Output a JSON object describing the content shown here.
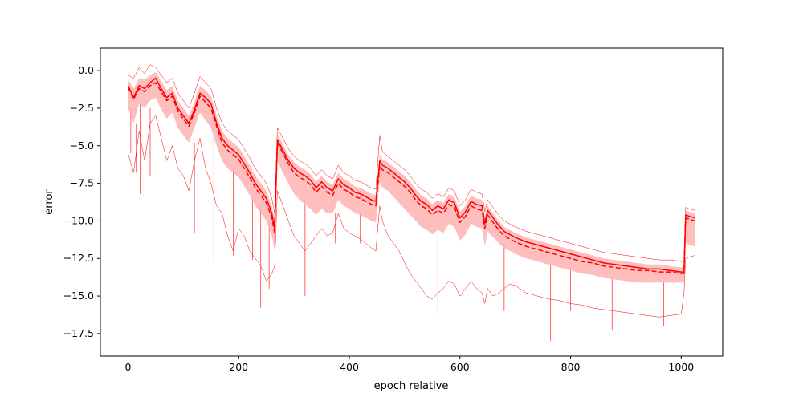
{
  "chart_data": {
    "type": "line",
    "title": "",
    "xlabel": "epoch relative",
    "ylabel": "error",
    "xlim": [
      -50,
      1075
    ],
    "ylim": [
      -19.0,
      1.5
    ],
    "grid": false,
    "legend": "none",
    "xticks": [
      0,
      200,
      400,
      600,
      800,
      1000
    ],
    "yticks": [
      0.0,
      -2.5,
      -5.0,
      -7.5,
      -10.0,
      -12.5,
      -15.0,
      -17.5
    ],
    "xtick_labels": [
      "0",
      "200",
      "400",
      "600",
      "800",
      "1000"
    ],
    "ytick_labels": [
      "0.0",
      "−2.5",
      "−5.0",
      "−7.5",
      "−10.0",
      "−12.5",
      "−15.0",
      "−17.5"
    ],
    "color": "#ff0000",
    "band_color": "#ffb3b3",
    "x": [
      0,
      10,
      20,
      30,
      40,
      50,
      60,
      70,
      80,
      90,
      100,
      110,
      120,
      130,
      140,
      150,
      160,
      170,
      180,
      190,
      200,
      210,
      220,
      230,
      240,
      250,
      260,
      265,
      270,
      280,
      290,
      300,
      310,
      320,
      330,
      340,
      350,
      360,
      370,
      380,
      390,
      400,
      410,
      420,
      430,
      440,
      448,
      455,
      460,
      470,
      480,
      490,
      500,
      510,
      520,
      530,
      540,
      550,
      560,
      570,
      580,
      590,
      600,
      610,
      620,
      630,
      640,
      645,
      650,
      660,
      670,
      680,
      690,
      700,
      720,
      740,
      760,
      780,
      800,
      820,
      840,
      860,
      880,
      900,
      920,
      940,
      960,
      980,
      1000,
      1005,
      1008,
      1015,
      1025
    ],
    "series": [
      {
        "line": "solid",
        "values": [
          -1.0,
          -1.8,
          -1.0,
          -1.2,
          -0.8,
          -0.5,
          -1.2,
          -1.8,
          -1.5,
          -2.5,
          -3.0,
          -3.5,
          -2.6,
          -1.5,
          -1.8,
          -2.2,
          -3.5,
          -4.5,
          -5.0,
          -5.3,
          -5.6,
          -6.2,
          -6.8,
          -7.5,
          -8.0,
          -8.5,
          -9.5,
          -10.5,
          -4.6,
          -5.3,
          -6.0,
          -6.5,
          -6.8,
          -7.0,
          -7.3,
          -7.8,
          -7.4,
          -7.8,
          -8.0,
          -7.2,
          -7.6,
          -7.8,
          -8.1,
          -8.2,
          -8.4,
          -8.6,
          -8.7,
          -6.0,
          -6.3,
          -6.5,
          -6.8,
          -7.1,
          -7.4,
          -7.8,
          -8.3,
          -8.7,
          -8.9,
          -9.3,
          -9.0,
          -9.2,
          -8.6,
          -8.8,
          -9.8,
          -9.4,
          -8.7,
          -8.9,
          -9.0,
          -10.2,
          -9.3,
          -9.8,
          -10.3,
          -10.7,
          -10.9,
          -11.1,
          -11.4,
          -11.6,
          -11.8,
          -12.0,
          -12.2,
          -12.4,
          -12.6,
          -12.8,
          -12.9,
          -13.0,
          -13.1,
          -13.2,
          -13.2,
          -13.3,
          -13.4,
          -13.4,
          -9.6,
          -9.7,
          -9.8
        ]
      },
      {
        "line": "dashed",
        "values": [
          -1.1,
          -1.9,
          -1.2,
          -1.4,
          -1.0,
          -0.8,
          -1.4,
          -2.0,
          -1.7,
          -2.7,
          -3.2,
          -3.7,
          -2.8,
          -1.7,
          -2.1,
          -2.5,
          -3.7,
          -4.8,
          -5.3,
          -5.6,
          -5.9,
          -6.5,
          -7.1,
          -7.8,
          -8.3,
          -8.8,
          -9.8,
          -10.8,
          -4.8,
          -5.5,
          -6.2,
          -6.8,
          -7.1,
          -7.3,
          -7.6,
          -8.1,
          -7.7,
          -8.1,
          -8.3,
          -7.5,
          -7.9,
          -8.1,
          -8.4,
          -8.5,
          -8.7,
          -8.9,
          -9.0,
          -6.3,
          -6.6,
          -6.8,
          -7.1,
          -7.4,
          -7.7,
          -8.1,
          -8.6,
          -9.0,
          -9.2,
          -9.6,
          -9.3,
          -9.5,
          -8.9,
          -9.1,
          -10.1,
          -9.7,
          -9.0,
          -9.2,
          -9.3,
          -10.5,
          -9.6,
          -10.1,
          -10.6,
          -11.0,
          -11.2,
          -11.4,
          -11.7,
          -11.9,
          -12.1,
          -12.3,
          -12.5,
          -12.7,
          -12.8,
          -13.0,
          -13.1,
          -13.2,
          -13.3,
          -13.3,
          -13.4,
          -13.4,
          -13.5,
          -13.5,
          -9.8,
          -9.9,
          -10.0
        ]
      }
    ],
    "band_lower": [
      -2.5,
      -3.5,
      -2.2,
      -2.5,
      -2.0,
      -1.8,
      -2.6,
      -3.2,
      -2.8,
      -3.8,
      -4.3,
      -4.8,
      -3.8,
      -2.8,
      -3.3,
      -3.8,
      -5.0,
      -6.0,
      -6.5,
      -6.8,
      -7.1,
      -7.7,
      -8.3,
      -9.0,
      -9.5,
      -10.0,
      -11.0,
      -12.0,
      -6.0,
      -6.8,
      -7.5,
      -8.2,
      -8.6,
      -8.9,
      -9.2,
      -9.6,
      -9.2,
      -9.5,
      -9.5,
      -8.6,
      -9.0,
      -9.2,
      -9.5,
      -9.6,
      -9.8,
      -10.0,
      -10.1,
      -7.4,
      -7.8,
      -8.0,
      -8.4,
      -8.8,
      -9.2,
      -9.6,
      -10.0,
      -10.4,
      -10.6,
      -10.9,
      -10.6,
      -10.8,
      -10.2,
      -10.4,
      -11.3,
      -10.9,
      -10.2,
      -10.4,
      -10.5,
      -11.7,
      -10.7,
      -11.1,
      -11.5,
      -11.8,
      -12.0,
      -12.2,
      -12.5,
      -12.7,
      -12.9,
      -13.1,
      -13.3,
      -13.5,
      -13.6,
      -13.8,
      -13.9,
      -14.0,
      -14.1,
      -14.1,
      -14.1,
      -14.1,
      -14.1,
      -14.1,
      -11.5,
      -11.6,
      -11.7
    ],
    "band_upper": [
      -0.6,
      -1.2,
      -0.5,
      -0.6,
      -0.3,
      -0.1,
      -0.7,
      -1.3,
      -1.0,
      -2.0,
      -2.5,
      -3.0,
      -2.1,
      -1.0,
      -1.3,
      -1.7,
      -3.0,
      -4.0,
      -4.5,
      -4.8,
      -5.1,
      -5.7,
      -6.3,
      -7.0,
      -7.5,
      -8.0,
      -9.0,
      -10.0,
      -4.2,
      -4.9,
      -5.6,
      -6.1,
      -6.4,
      -6.6,
      -6.9,
      -7.4,
      -7.0,
      -7.4,
      -7.6,
      -6.8,
      -7.2,
      -7.4,
      -7.7,
      -7.8,
      -8.0,
      -8.2,
      -8.3,
      -5.6,
      -5.9,
      -6.1,
      -6.4,
      -6.7,
      -7.0,
      -7.4,
      -7.9,
      -8.3,
      -8.5,
      -8.9,
      -8.6,
      -8.8,
      -8.2,
      -8.4,
      -9.4,
      -9.0,
      -8.3,
      -8.5,
      -8.6,
      -9.8,
      -9.0,
      -9.5,
      -10.0,
      -10.4,
      -10.6,
      -10.8,
      -11.1,
      -11.3,
      -11.5,
      -11.7,
      -11.9,
      -12.1,
      -12.3,
      -12.5,
      -12.6,
      -12.7,
      -12.8,
      -12.9,
      -12.9,
      -13.0,
      -13.1,
      -13.1,
      -9.3,
      -9.4,
      -9.5
    ],
    "thin_lower": [
      -5.5,
      -6.8,
      -4.0,
      -6.0,
      -3.5,
      -3.0,
      -4.5,
      -6.0,
      -5.0,
      -6.5,
      -7.0,
      -8.0,
      -6.0,
      -4.5,
      -6.5,
      -7.5,
      -9.0,
      -9.5,
      -11.0,
      -12.0,
      -10.5,
      -11.0,
      -12.0,
      -12.5,
      -13.0,
      -14.0,
      -13.5,
      -13.0,
      -8.0,
      -9.0,
      -10.0,
      -11.0,
      -11.5,
      -12.0,
      -11.5,
      -11.0,
      -10.5,
      -11.0,
      -10.8,
      -9.5,
      -10.5,
      -10.8,
      -11.0,
      -11.2,
      -11.5,
      -11.8,
      -12.0,
      -9.0,
      -10.0,
      -11.0,
      -11.5,
      -12.0,
      -12.8,
      -13.5,
      -14.0,
      -14.5,
      -15.0,
      -15.2,
      -14.8,
      -14.5,
      -14.0,
      -14.2,
      -15.0,
      -14.5,
      -14.0,
      -14.5,
      -14.8,
      -15.5,
      -14.5,
      -15.0,
      -14.8,
      -14.5,
      -14.2,
      -14.3,
      -14.8,
      -15.0,
      -15.2,
      -15.3,
      -15.5,
      -15.6,
      -15.8,
      -15.9,
      -16.0,
      -16.1,
      -16.2,
      -16.3,
      -16.4,
      -16.3,
      -16.2,
      -14.8,
      -12.5,
      -12.4,
      -12.3
    ],
    "thin_upper": [
      -0.3,
      -0.5,
      0.2,
      -0.2,
      0.4,
      0.2,
      -0.3,
      -0.8,
      -0.5,
      -1.5,
      -2.0,
      -2.5,
      -1.5,
      -0.4,
      -0.8,
      -1.2,
      -2.5,
      -3.5,
      -4.0,
      -4.3,
      -4.6,
      -5.2,
      -5.8,
      -6.5,
      -7.0,
      -7.5,
      -8.5,
      -9.5,
      -3.8,
      -4.5,
      -5.2,
      -5.7,
      -6.0,
      -6.2,
      -6.5,
      -7.0,
      -6.6,
      -7.0,
      -7.2,
      -6.3,
      -6.8,
      -7.0,
      -7.3,
      -7.4,
      -7.6,
      -7.8,
      -7.9,
      -4.3,
      -5.4,
      -5.7,
      -6.0,
      -6.3,
      -6.6,
      -7.0,
      -7.5,
      -7.9,
      -8.1,
      -8.5,
      -8.2,
      -8.4,
      -7.8,
      -8.0,
      -9.0,
      -8.6,
      -7.9,
      -8.1,
      -8.2,
      -9.4,
      -8.6,
      -9.1,
      -9.6,
      -10.0,
      -10.2,
      -10.4,
      -10.7,
      -10.9,
      -11.1,
      -11.3,
      -11.5,
      -11.7,
      -11.9,
      -12.1,
      -12.2,
      -12.3,
      -12.4,
      -12.5,
      -12.6,
      -12.6,
      -12.7,
      -12.7,
      -9.1,
      -9.2,
      -9.3
    ],
    "spikes": [
      {
        "x": 5,
        "y": -5.5
      },
      {
        "x": 15,
        "y": -6.8
      },
      {
        "x": 22,
        "y": -8.2
      },
      {
        "x": 40,
        "y": -7.0
      },
      {
        "x": 120,
        "y": -10.8
      },
      {
        "x": 155,
        "y": -12.6
      },
      {
        "x": 190,
        "y": -12.3
      },
      {
        "x": 225,
        "y": -12.6
      },
      {
        "x": 240,
        "y": -15.8
      },
      {
        "x": 255,
        "y": -14.5
      },
      {
        "x": 320,
        "y": -15.0
      },
      {
        "x": 375,
        "y": -11.5
      },
      {
        "x": 420,
        "y": -11.5
      },
      {
        "x": 560,
        "y": -16.2
      },
      {
        "x": 620,
        "y": -14.8
      },
      {
        "x": 680,
        "y": -16.0
      },
      {
        "x": 764,
        "y": -18.0
      },
      {
        "x": 800,
        "y": -16.0
      },
      {
        "x": 875,
        "y": -17.3
      },
      {
        "x": 968,
        "y": -17.0
      }
    ]
  }
}
